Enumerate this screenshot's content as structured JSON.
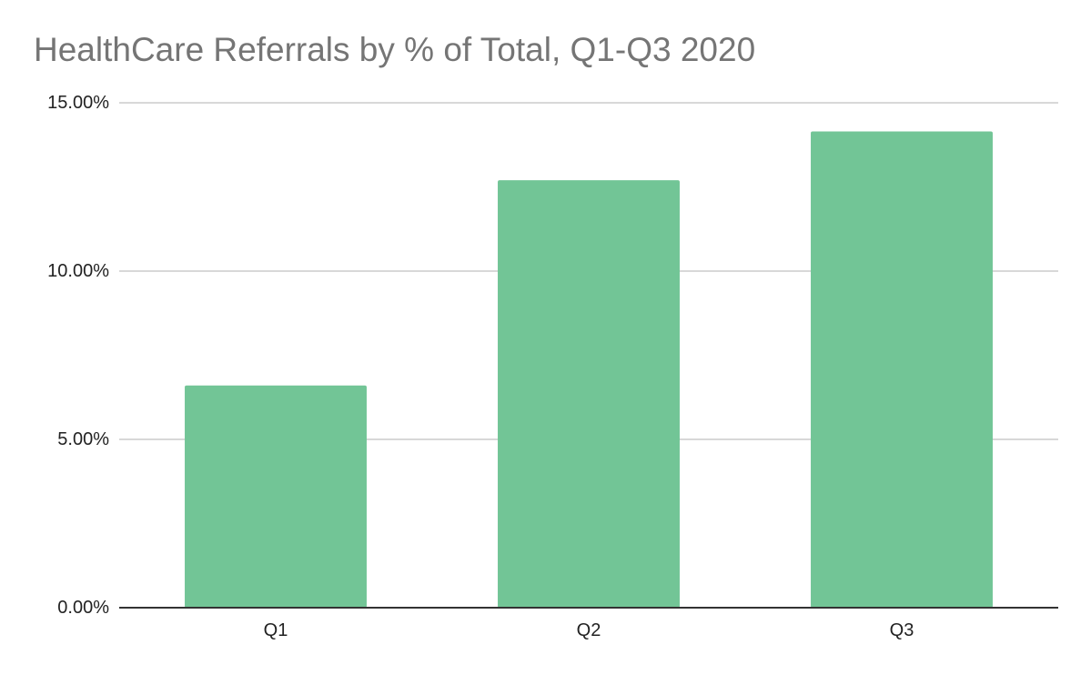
{
  "chart_data": {
    "type": "bar",
    "title": "HealthCare Referrals by % of Total, Q1-Q3 2020",
    "categories": [
      "Q1",
      "Q2",
      "Q3"
    ],
    "values": [
      6.6,
      12.7,
      14.15
    ],
    "ylim": [
      0,
      15
    ],
    "yticks": [
      0,
      5,
      10,
      15
    ],
    "ytick_labels": [
      "0.00%",
      "5.00%",
      "10.00%",
      "15.00%"
    ],
    "xlabel": "",
    "ylabel": "",
    "grid": true,
    "legend": "none",
    "colors": {
      "bar": "#72c596",
      "grid": "#cccccc",
      "axis": "#333333",
      "title": "#757575"
    }
  }
}
